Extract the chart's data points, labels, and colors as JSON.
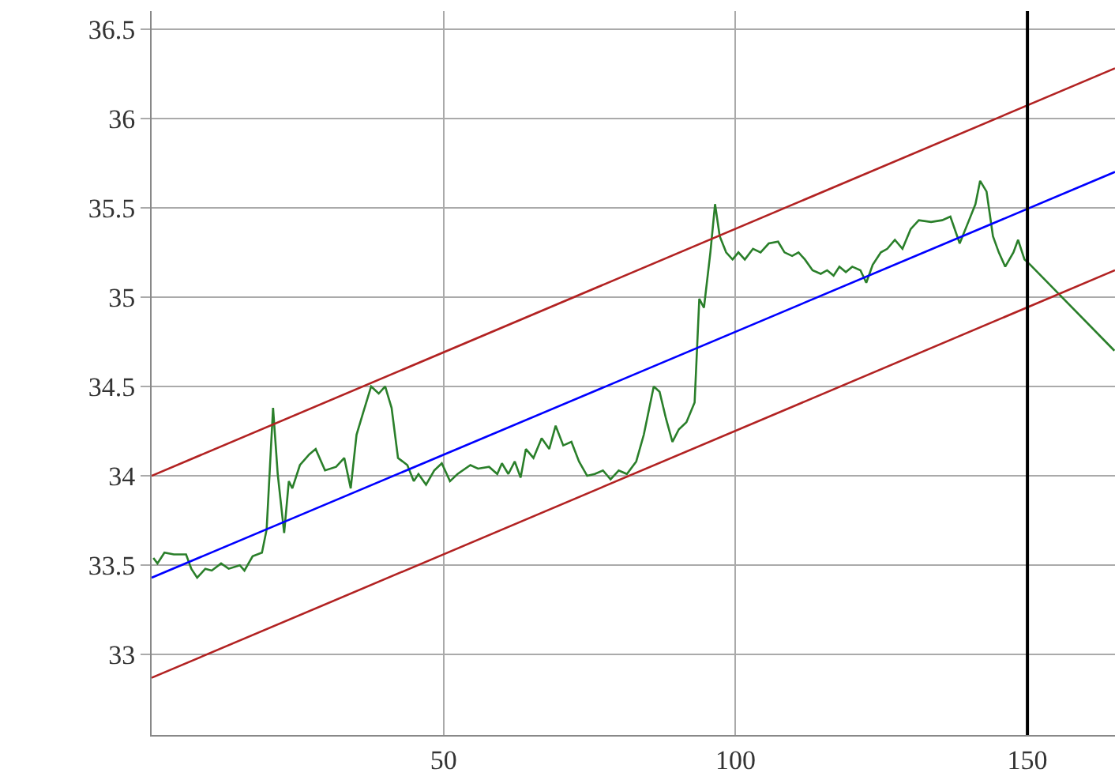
{
  "chart_data": {
    "type": "line",
    "xlim": [
      0,
      165
    ],
    "ylim": [
      32.55,
      36.6
    ],
    "xticks": [
      50,
      100,
      150
    ],
    "yticks": [
      33,
      33.5,
      34,
      34.5,
      35,
      35.5,
      36,
      36.5
    ],
    "grid": true,
    "line_style": "solid",
    "series": [
      {
        "color": "#2a7f2a",
        "x": [
          0.3,
          1,
          2.2,
          3.8,
          5.9,
          6.8,
          7.8,
          9.2,
          10.3,
          11.9,
          13.2,
          15.1,
          15.9,
          17.3,
          18.9,
          19.7,
          20.8,
          21.6,
          22.7,
          23.5,
          24.1,
          25.4,
          27,
          28.1,
          29.7,
          31.6,
          33,
          34.1,
          35.1,
          36.2,
          37.6,
          38.9,
          40,
          41.1,
          42.2,
          43.8,
          44.9,
          45.7,
          47,
          48.4,
          49.7,
          51.1,
          52.4,
          54.6,
          55.9,
          57.8,
          59.2,
          60,
          61.1,
          62.2,
          63.2,
          64.1,
          65.4,
          66.8,
          68.1,
          69.2,
          70.5,
          71.9,
          73.2,
          74.6,
          75.9,
          77.3,
          78.6,
          80,
          81.4,
          83,
          84.3,
          86,
          87,
          88.1,
          89.2,
          90.3,
          91.6,
          93,
          93.8,
          94.6,
          95.7,
          96.5,
          97.3,
          98.4,
          99.5,
          100.5,
          101.6,
          103,
          104.3,
          105.7,
          107.3,
          108.4,
          109.7,
          110.8,
          111.9,
          113.2,
          114.6,
          115.7,
          116.8,
          117.8,
          118.9,
          120,
          121.4,
          122.4,
          123.5,
          124.9,
          126,
          127.3,
          128.6,
          130,
          131.4,
          133.5,
          135.4,
          136.8,
          138.4,
          140,
          141.1,
          141.9,
          143,
          144.1,
          145.1,
          146.2,
          147.6,
          148.4,
          149.5,
          150.5,
          164.9
        ],
        "values": [
          33.54,
          33.51,
          33.57,
          33.56,
          33.56,
          33.48,
          33.43,
          33.48,
          33.47,
          33.51,
          33.48,
          33.5,
          33.47,
          33.55,
          33.57,
          33.7,
          34.38,
          34.01,
          33.68,
          33.97,
          33.93,
          34.06,
          34.12,
          34.15,
          34.03,
          34.05,
          34.1,
          33.93,
          34.23,
          34.35,
          34.5,
          34.46,
          34.5,
          34.38,
          34.1,
          34.06,
          33.97,
          34.01,
          33.95,
          34.03,
          34.07,
          33.97,
          34.01,
          34.06,
          34.04,
          34.05,
          34.01,
          34.07,
          34.01,
          34.08,
          33.99,
          34.15,
          34.1,
          34.21,
          34.15,
          34.28,
          34.17,
          34.19,
          34.08,
          34.0,
          34.01,
          34.03,
          33.98,
          34.03,
          34.01,
          34.08,
          34.23,
          34.5,
          34.47,
          34.32,
          34.19,
          34.26,
          34.3,
          34.41,
          34.99,
          34.94,
          35.25,
          35.52,
          35.34,
          35.25,
          35.21,
          35.25,
          35.21,
          35.27,
          35.25,
          35.3,
          35.31,
          35.25,
          35.23,
          35.25,
          35.21,
          35.15,
          35.13,
          35.15,
          35.12,
          35.17,
          35.14,
          35.17,
          35.15,
          35.08,
          35.18,
          35.25,
          35.27,
          35.32,
          35.27,
          35.38,
          35.43,
          35.42,
          35.43,
          35.45,
          35.3,
          35.43,
          35.52,
          35.65,
          35.59,
          35.34,
          35.25,
          35.17,
          35.25,
          35.32,
          35.21,
          35.18,
          34.7
        ]
      },
      {
        "color": "#0000ff",
        "x": [
          0,
          165
        ],
        "values": [
          33.43,
          35.7
        ]
      },
      {
        "color": "#b22222",
        "x": [
          0,
          165
        ],
        "values": [
          34.0,
          36.28
        ]
      },
      {
        "color": "#b22222",
        "x": [
          0,
          165
        ],
        "values": [
          32.87,
          35.15
        ]
      }
    ],
    "ref_lines": [
      {
        "axis": "x",
        "value": 150,
        "color": "#000000"
      }
    ]
  }
}
